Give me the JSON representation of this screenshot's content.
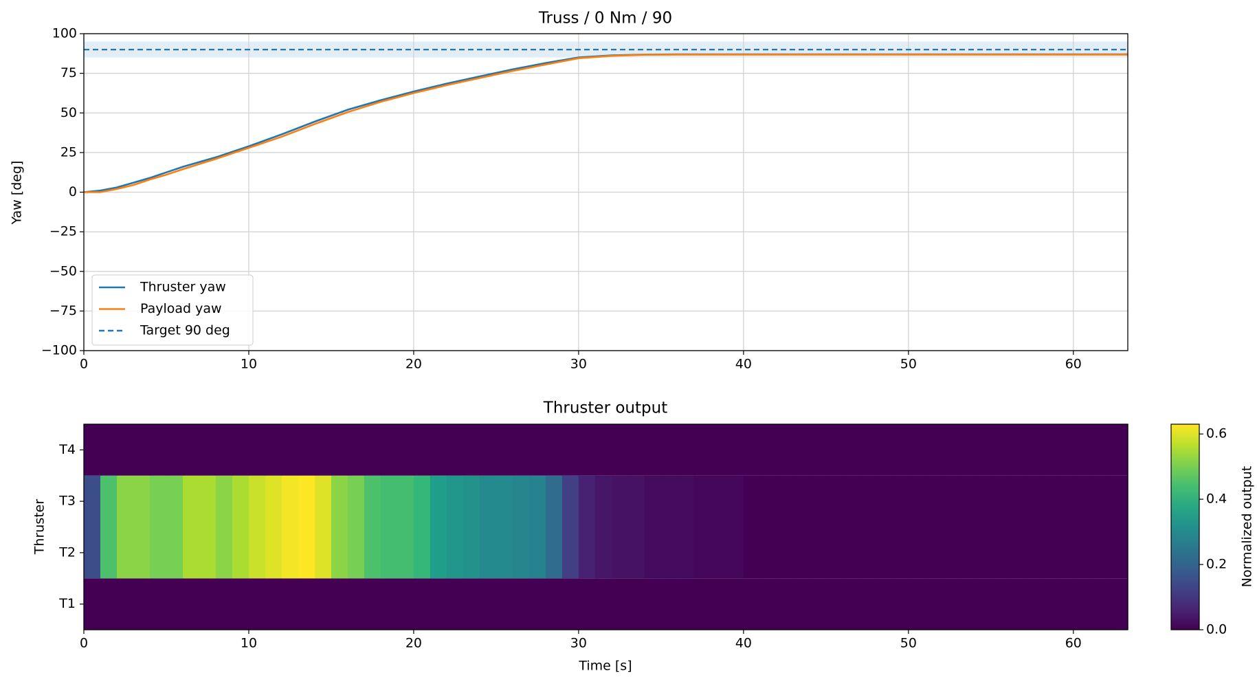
{
  "chart_data": [
    {
      "type": "line",
      "title": "Truss / 0 Nm / 90",
      "ylabel": "Yaw [deg]",
      "x": [
        0,
        1,
        2,
        3,
        4,
        5,
        6,
        8,
        10,
        12,
        14,
        16,
        18,
        20,
        22,
        24,
        26,
        28,
        30,
        32,
        34,
        36,
        40,
        50,
        63.3
      ],
      "series": [
        {
          "name": "Thruster yaw",
          "color": "#1f77b4",
          "style": "solid",
          "values": [
            0,
            1,
            3,
            6,
            9,
            12.5,
            16,
            22,
            29,
            36.5,
            44.5,
            52,
            58,
            63.5,
            68.5,
            73,
            77.5,
            81.5,
            85,
            86.3,
            86.8,
            87,
            87,
            87,
            87
          ]
        },
        {
          "name": "Payload yaw",
          "color": "#ff7f0e",
          "style": "solid",
          "values": [
            0,
            0,
            2,
            4.5,
            8,
            11,
            14.5,
            21,
            28,
            35,
            43,
            50.5,
            57,
            62.5,
            67.5,
            72,
            76.5,
            80.5,
            84.5,
            86,
            86.7,
            86.8,
            86.8,
            86.8,
            86.8
          ]
        },
        {
          "name": "Target 90 deg",
          "color": "#1f77b4",
          "style": "dashed",
          "values": [
            90,
            90,
            90,
            90,
            90,
            90,
            90,
            90,
            90,
            90,
            90,
            90,
            90,
            90,
            90,
            90,
            90,
            90,
            90,
            90,
            90,
            90,
            90,
            90,
            90
          ]
        }
      ],
      "target_band": [
        85,
        95
      ],
      "band_color": "#1f77b4",
      "xlim": [
        0,
        63.3
      ],
      "ylim": [
        -100,
        100
      ],
      "xticks": [
        0,
        10,
        20,
        30,
        40,
        50,
        60
      ],
      "yticks": [
        {
          "value": -100,
          "label": "−100"
        },
        {
          "value": -75,
          "label": "−75"
        },
        {
          "value": -50,
          "label": "−50"
        },
        {
          "value": -25,
          "label": "−25"
        },
        0,
        25,
        50,
        75,
        100
      ],
      "grid": true,
      "legend": "lower left"
    },
    {
      "type": "heatmap",
      "title": "Thruster output",
      "xlabel": "Time [s]",
      "ylabel": "Thruster",
      "colorbar_label": "Normalized output",
      "categories": [
        "T1",
        "T2",
        "T3",
        "T4"
      ],
      "bins": [
        0,
        1,
        2,
        3,
        4,
        5,
        6,
        7,
        8,
        9,
        10,
        11,
        12,
        13,
        14,
        15,
        16,
        17,
        18,
        19,
        20,
        21,
        22,
        23,
        24,
        25,
        26,
        27,
        28,
        29,
        30,
        31,
        32,
        33,
        34,
        35,
        36,
        37,
        38,
        39,
        40,
        41,
        42,
        43,
        44,
        45,
        46,
        47,
        48,
        49,
        50,
        51,
        52,
        53,
        54,
        55,
        56,
        57,
        58,
        59,
        60,
        61,
        62,
        63,
        63.3
      ],
      "z": [
        [
          0,
          0,
          0,
          0,
          0,
          0,
          0,
          0,
          0,
          0,
          0,
          0,
          0,
          0,
          0,
          0,
          0,
          0,
          0,
          0,
          0,
          0,
          0,
          0,
          0,
          0,
          0,
          0,
          0,
          0,
          0,
          0,
          0,
          0,
          0,
          0,
          0,
          0,
          0,
          0,
          0,
          0,
          0,
          0,
          0,
          0,
          0,
          0,
          0,
          0,
          0,
          0,
          0,
          0,
          0,
          0,
          0,
          0,
          0,
          0,
          0,
          0,
          0,
          0
        ],
        [
          0.15,
          0.45,
          0.52,
          0.52,
          0.5,
          0.5,
          0.55,
          0.55,
          0.52,
          0.55,
          0.58,
          0.6,
          0.62,
          0.63,
          0.6,
          0.52,
          0.5,
          0.45,
          0.44,
          0.44,
          0.42,
          0.35,
          0.33,
          0.32,
          0.3,
          0.3,
          0.29,
          0.28,
          0.22,
          0.12,
          0.06,
          0.04,
          0.03,
          0.03,
          0.02,
          0.02,
          0.02,
          0.01,
          0.01,
          0.01,
          0,
          0,
          0,
          0,
          0,
          0,
          0,
          0,
          0,
          0,
          0,
          0,
          0,
          0,
          0,
          0,
          0,
          0,
          0,
          0,
          0,
          0,
          0,
          0
        ],
        [
          0.15,
          0.45,
          0.52,
          0.52,
          0.5,
          0.5,
          0.55,
          0.55,
          0.52,
          0.55,
          0.58,
          0.6,
          0.62,
          0.63,
          0.6,
          0.52,
          0.5,
          0.45,
          0.44,
          0.44,
          0.42,
          0.35,
          0.33,
          0.32,
          0.3,
          0.3,
          0.29,
          0.28,
          0.22,
          0.12,
          0.06,
          0.04,
          0.03,
          0.03,
          0.02,
          0.02,
          0.02,
          0.01,
          0.01,
          0.01,
          0,
          0,
          0,
          0,
          0,
          0,
          0,
          0,
          0,
          0,
          0,
          0,
          0,
          0,
          0,
          0,
          0,
          0,
          0,
          0,
          0,
          0,
          0,
          0
        ],
        [
          0,
          0,
          0,
          0,
          0,
          0,
          0,
          0,
          0,
          0,
          0,
          0,
          0,
          0,
          0,
          0,
          0,
          0,
          0,
          0,
          0,
          0,
          0,
          0,
          0,
          0,
          0,
          0,
          0,
          0,
          0,
          0,
          0,
          0,
          0,
          0,
          0,
          0,
          0,
          0,
          0,
          0,
          0,
          0,
          0,
          0,
          0,
          0,
          0,
          0,
          0,
          0,
          0,
          0,
          0,
          0,
          0,
          0,
          0,
          0,
          0,
          0,
          0,
          0
        ]
      ],
      "colormap": "viridis",
      "clim": [
        0,
        0.63
      ],
      "xlim": [
        0,
        63.3
      ],
      "xticks": [
        0,
        10,
        20,
        30,
        40,
        50,
        60
      ],
      "cticks": [
        {
          "value": 0,
          "label": "0.0"
        },
        {
          "value": 0.2,
          "label": "0.2"
        },
        {
          "value": 0.4,
          "label": "0.4"
        },
        {
          "value": 0.6,
          "label": "0.6"
        }
      ]
    }
  ]
}
